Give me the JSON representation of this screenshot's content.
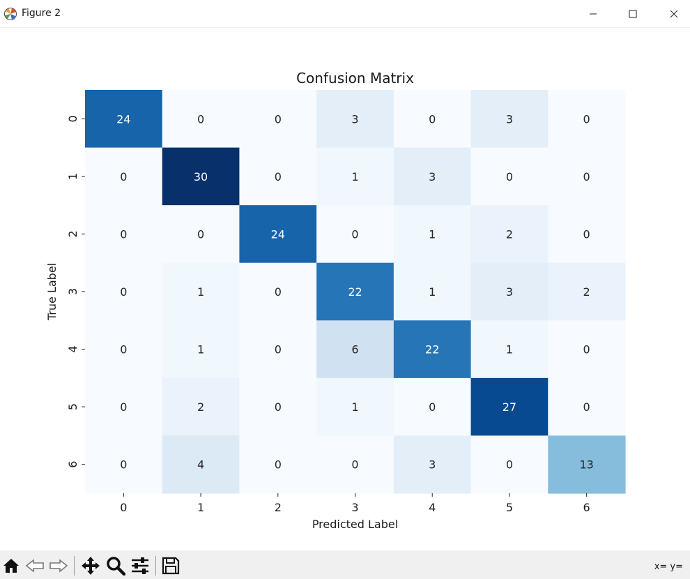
{
  "window": {
    "title": "Figure 2"
  },
  "toolbar": {
    "items": [
      {
        "name": "home-icon"
      },
      {
        "name": "back-icon"
      },
      {
        "name": "forward-icon"
      },
      {
        "name": "pan-icon"
      },
      {
        "name": "zoom-icon"
      },
      {
        "name": "configure-subplots-icon"
      },
      {
        "name": "save-icon"
      }
    ],
    "coords": "x= y="
  },
  "chart_data": {
    "type": "heatmap",
    "title": "Confusion Matrix",
    "xlabel": "Predicted Label",
    "ylabel": "True Label",
    "x_categories": [
      "0",
      "1",
      "2",
      "3",
      "4",
      "5",
      "6"
    ],
    "y_categories": [
      "0",
      "1",
      "2",
      "3",
      "4",
      "5",
      "6"
    ],
    "values": [
      [
        24,
        0,
        0,
        3,
        0,
        3,
        0
      ],
      [
        0,
        30,
        0,
        1,
        3,
        0,
        0
      ],
      [
        0,
        0,
        24,
        0,
        1,
        2,
        0
      ],
      [
        0,
        1,
        0,
        22,
        1,
        3,
        2
      ],
      [
        0,
        1,
        0,
        6,
        22,
        1,
        0
      ],
      [
        0,
        2,
        0,
        1,
        0,
        27,
        0
      ],
      [
        0,
        4,
        0,
        0,
        3,
        0,
        13
      ]
    ],
    "colormap": "Blues",
    "vmin": 0,
    "vmax": 30,
    "colorbar": false
  }
}
